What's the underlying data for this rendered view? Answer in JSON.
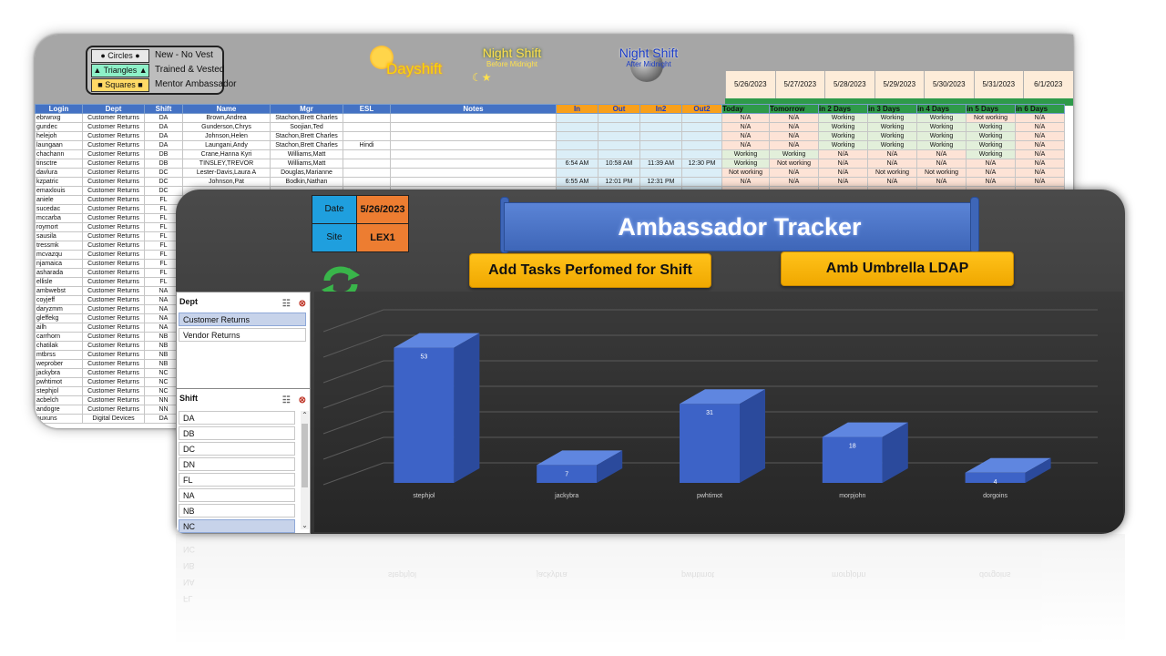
{
  "legend": {
    "rows": [
      {
        "shape": "● Circles ●",
        "desc": "New - No Vest",
        "color": "#e8e8e8"
      },
      {
        "shape": "▲ Triangles ▲",
        "desc": "Trained & Vested",
        "color": "#8ef0c8"
      },
      {
        "shape": "■ Squares ■",
        "desc": "Mentor Ambassador",
        "color": "#ffd966"
      }
    ]
  },
  "badges": {
    "dayshift": "Dayshift",
    "night1_title": "Night Shift",
    "night1_sub": "Before Midnight",
    "night2_title": "Night Shift",
    "night2_sub": "After Midnight"
  },
  "dates": [
    "5/26/2023",
    "5/27/2023",
    "5/28/2023",
    "5/29/2023",
    "5/30/2023",
    "5/31/2023",
    "6/1/2023"
  ],
  "columns": [
    "Login",
    "Dept",
    "Shift",
    "Name",
    "Mgr",
    "ESL",
    "Notes",
    "In",
    "Out",
    "In2",
    "Out2",
    "Today",
    "Tomorrow",
    "in 2 Days",
    "in 3 Days",
    "in 4 Days",
    "in 5 Days",
    "in 6 Days"
  ],
  "rows": [
    [
      "ebrwnxg",
      "Customer Returns",
      "DA",
      "Brown,Andrea",
      "Stachon,Brett Charles",
      "",
      "",
      "",
      "",
      "",
      "",
      "N/A",
      "N/A",
      "Working",
      "Working",
      "Working",
      "Not working",
      "N/A"
    ],
    [
      "gundec",
      "Customer Returns",
      "DA",
      "Gunderson,Chrys",
      "Soojian,Ted",
      "",
      "",
      "",
      "",
      "",
      "",
      "N/A",
      "N/A",
      "Working",
      "Working",
      "Working",
      "Working",
      "N/A"
    ],
    [
      "helejoh",
      "Customer Returns",
      "DA",
      "Johnson,Helen",
      "Stachon,Brett Charles",
      "",
      "",
      "",
      "",
      "",
      "",
      "N/A",
      "N/A",
      "Working",
      "Working",
      "Working",
      "Working",
      "N/A"
    ],
    [
      "laungaan",
      "Customer Returns",
      "DA",
      "Laungani,Andy",
      "Stachon,Brett Charles",
      "Hindi",
      "",
      "",
      "",
      "",
      "",
      "N/A",
      "N/A",
      "Working",
      "Working",
      "Working",
      "Working",
      "N/A"
    ],
    [
      "chachann",
      "Customer Returns",
      "DB",
      "Crane,Hanna Kyri",
      "Williams,Matt",
      "",
      "",
      "",
      "",
      "",
      "",
      "Working",
      "Working",
      "N/A",
      "N/A",
      "N/A",
      "Working",
      "N/A"
    ],
    [
      "tinsctre",
      "Customer Returns",
      "DB",
      "TINSLEY,TREVOR",
      "Williams,Matt",
      "",
      "",
      "6:54 AM",
      "10:58 AM",
      "11:39 AM",
      "12:30 PM",
      "Working",
      "Not working",
      "N/A",
      "N/A",
      "N/A",
      "N/A",
      "N/A"
    ],
    [
      "davlura",
      "Customer Returns",
      "DC",
      "Lester-Davis,Laura A",
      "Douglas,Marianne",
      "",
      "",
      "",
      "",
      "",
      "",
      "Not working",
      "N/A",
      "N/A",
      "Not working",
      "Not working",
      "N/A",
      "N/A"
    ],
    [
      "kzpatric",
      "Customer Returns",
      "DC",
      "Johnson,Pat",
      "Bodkin,Nathan",
      "",
      "",
      "6:55 AM",
      "12:01 PM",
      "12:31 PM",
      "",
      "N/A",
      "N/A",
      "N/A",
      "N/A",
      "N/A",
      "N/A",
      "N/A"
    ],
    [
      "emaxlouis",
      "Customer Returns",
      "DC",
      "",
      "",
      "",
      "",
      "",
      "",
      "",
      "",
      "",
      "",
      "",
      "",
      "",
      "",
      ""
    ],
    [
      "aniele",
      "Customer Returns",
      "FL",
      "",
      "",
      "",
      "",
      "",
      "",
      "",
      "",
      "",
      "",
      "",
      "",
      "",
      "",
      ""
    ],
    [
      "sucedac",
      "Customer Returns",
      "FL",
      "",
      "",
      "",
      "",
      "",
      "",
      "",
      "",
      "",
      "",
      "",
      "",
      "",
      "",
      ""
    ],
    [
      "mccarba",
      "Customer Returns",
      "FL",
      "",
      "",
      "",
      "",
      "",
      "",
      "",
      "",
      "",
      "",
      "",
      "",
      "",
      "",
      ""
    ],
    [
      "roymort",
      "Customer Returns",
      "FL",
      "",
      "",
      "",
      "",
      "",
      "",
      "",
      "",
      "",
      "",
      "",
      "",
      "",
      "",
      ""
    ],
    [
      "sausila",
      "Customer Returns",
      "FL",
      "",
      "",
      "",
      "",
      "",
      "",
      "",
      "",
      "",
      "",
      "",
      "",
      "",
      "",
      ""
    ],
    [
      "tressmk",
      "Customer Returns",
      "FL",
      "",
      "",
      "",
      "",
      "",
      "",
      "",
      "",
      "",
      "",
      "",
      "",
      "",
      "",
      ""
    ],
    [
      "mcvazqu",
      "Customer Returns",
      "FL",
      "",
      "",
      "",
      "",
      "",
      "",
      "",
      "",
      "",
      "",
      "",
      "",
      "",
      "",
      ""
    ],
    [
      "njamaica",
      "Customer Returns",
      "FL",
      "",
      "",
      "",
      "",
      "",
      "",
      "",
      "",
      "",
      "",
      "",
      "",
      "",
      "",
      ""
    ],
    [
      "asharada",
      "Customer Returns",
      "FL",
      "",
      "",
      "",
      "",
      "",
      "",
      "",
      "",
      "",
      "",
      "",
      "",
      "",
      "",
      ""
    ],
    [
      "ellisle",
      "Customer Returns",
      "FL",
      "",
      "",
      "",
      "",
      "",
      "",
      "",
      "",
      "",
      "",
      "",
      "",
      "",
      "",
      ""
    ],
    [
      "ambwebst",
      "Customer Returns",
      "NA",
      "",
      "",
      "",
      "",
      "",
      "",
      "",
      "",
      "",
      "",
      "",
      "",
      "",
      "",
      ""
    ],
    [
      "coyjeff",
      "Customer Returns",
      "NA",
      "",
      "",
      "",
      "",
      "",
      "",
      "",
      "",
      "",
      "",
      "",
      "",
      "",
      "",
      ""
    ],
    [
      "daryzmm",
      "Customer Returns",
      "NA",
      "",
      "",
      "",
      "",
      "",
      "",
      "",
      "",
      "",
      "",
      "",
      "",
      "",
      "",
      ""
    ],
    [
      "gleffekg",
      "Customer Returns",
      "NA",
      "",
      "",
      "",
      "",
      "",
      "",
      "",
      "",
      "",
      "",
      "",
      "",
      "",
      "",
      ""
    ],
    [
      "ailh",
      "Customer Returns",
      "NA",
      "",
      "",
      "",
      "",
      "",
      "",
      "",
      "",
      "",
      "",
      "",
      "",
      "",
      "",
      ""
    ],
    [
      "carrhorn",
      "Customer Returns",
      "NB",
      "",
      "",
      "",
      "",
      "",
      "",
      "",
      "",
      "",
      "",
      "",
      "",
      "",
      "",
      ""
    ],
    [
      "chatilak",
      "Customer Returns",
      "NB",
      "",
      "",
      "",
      "",
      "",
      "",
      "",
      "",
      "",
      "",
      "",
      "",
      "",
      "",
      ""
    ],
    [
      "mtbrss",
      "Customer Returns",
      "NB",
      "",
      "",
      "",
      "",
      "",
      "",
      "",
      "",
      "",
      "",
      "",
      "",
      "",
      "",
      ""
    ],
    [
      "weprober",
      "Customer Returns",
      "NB",
      "",
      "",
      "",
      "",
      "",
      "",
      "",
      "",
      "",
      "",
      "",
      "",
      "",
      "",
      ""
    ],
    [
      "jackybra",
      "Customer Returns",
      "NC",
      "",
      "",
      "",
      "",
      "",
      "",
      "",
      "",
      "",
      "",
      "",
      "",
      "",
      "",
      ""
    ],
    [
      "pwhtimot",
      "Customer Returns",
      "NC",
      "",
      "",
      "",
      "",
      "",
      "",
      "",
      "",
      "",
      "",
      "",
      "",
      "",
      "",
      ""
    ],
    [
      "stephjol",
      "Customer Returns",
      "NC",
      "",
      "",
      "",
      "",
      "",
      "",
      "",
      "",
      "",
      "",
      "",
      "",
      "",
      "",
      ""
    ],
    [
      "acbelch",
      "Customer Returns",
      "NN",
      "",
      "",
      "",
      "",
      "",
      "",
      "",
      "",
      "",
      "",
      "",
      "",
      "",
      "",
      ""
    ],
    [
      "andogre",
      "Customer Returns",
      "NN",
      "",
      "",
      "",
      "",
      "",
      "",
      "",
      "",
      "",
      "",
      "",
      "",
      "",
      "",
      ""
    ],
    [
      "nuxuns",
      "Digital Devices",
      "DA",
      "",
      "",
      "",
      "",
      "",
      "",
      "",
      "",
      "",
      "",
      "",
      "",
      "",
      "",
      ""
    ]
  ],
  "dashboard": {
    "date_label": "Date",
    "date_value": "5/26/2023",
    "site_label": "Site",
    "site_value": "LEX1",
    "title": "Ambassador Tracker",
    "btn_add_tasks": "Add Tasks Perfomed for Shift",
    "btn_umbrella": "Amb Umbrella LDAP",
    "dept_slicer": {
      "title": "Dept",
      "items": [
        "Customer Returns",
        "Vendor Returns"
      ],
      "selected": 0
    },
    "shift_slicer": {
      "title": "Shift",
      "items": [
        "DA",
        "DB",
        "DC",
        "DN",
        "FL",
        "NA",
        "NB",
        "NC"
      ],
      "selected": 7
    }
  },
  "chart_data": {
    "type": "bar",
    "categories": [
      "stephjol",
      "jackybra",
      "pwhtimot",
      "morpjohn",
      "dorgoins"
    ],
    "values": [
      53,
      7,
      31,
      18,
      4
    ],
    "ylim": [
      0,
      60
    ],
    "grid": true,
    "bar_color": "#3d63c7"
  },
  "reflection": {
    "slicer_items": [
      "NC",
      "NB",
      "NA",
      "FL"
    ],
    "categories": [
      "stephjol",
      "jackybra",
      "pwhtimot",
      "morpjohn",
      "dorgoins"
    ]
  }
}
